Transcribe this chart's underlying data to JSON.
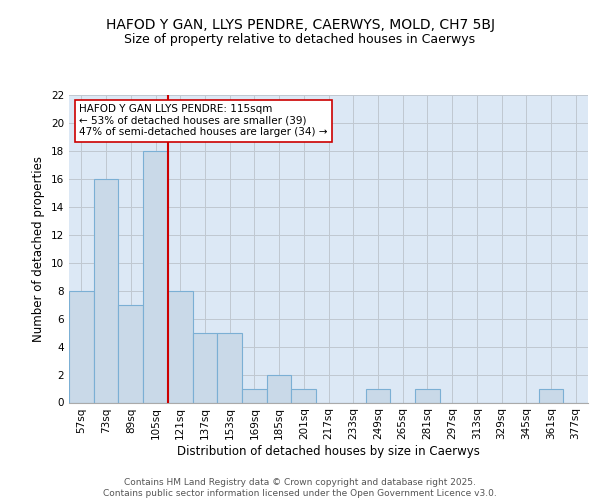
{
  "title1": "HAFOD Y GAN, LLYS PENDRE, CAERWYS, MOLD, CH7 5BJ",
  "title2": "Size of property relative to detached houses in Caerwys",
  "xlabel": "Distribution of detached houses by size in Caerwys",
  "ylabel": "Number of detached properties",
  "bar_labels": [
    "57sq",
    "73sq",
    "89sq",
    "105sq",
    "121sq",
    "137sq",
    "153sq",
    "169sq",
    "185sq",
    "201sq",
    "217sq",
    "233sq",
    "249sq",
    "265sq",
    "281sq",
    "297sq",
    "313sq",
    "329sq",
    "345sq",
    "361sq",
    "377sq"
  ],
  "bar_values": [
    8,
    16,
    7,
    18,
    8,
    5,
    5,
    1,
    2,
    1,
    0,
    0,
    1,
    0,
    1,
    0,
    0,
    0,
    0,
    1,
    0
  ],
  "bar_color": "#c9d9e8",
  "bar_edge_color": "#7bafd4",
  "grid_color": "#c0c8d0",
  "background_color": "#dce8f5",
  "red_line_x": 3.5,
  "annotation_text": "HAFOD Y GAN LLYS PENDRE: 115sqm\n← 53% of detached houses are smaller (39)\n47% of semi-detached houses are larger (34) →",
  "annotation_box_color": "#ffffff",
  "annotation_box_edge": "#cc0000",
  "red_line_color": "#cc0000",
  "ylim": [
    0,
    22
  ],
  "yticks": [
    0,
    2,
    4,
    6,
    8,
    10,
    12,
    14,
    16,
    18,
    20,
    22
  ],
  "footer": "Contains HM Land Registry data © Crown copyright and database right 2025.\nContains public sector information licensed under the Open Government Licence v3.0.",
  "title_fontsize": 10,
  "subtitle_fontsize": 9,
  "axis_label_fontsize": 8.5,
  "tick_fontsize": 7.5,
  "annotation_fontsize": 7.5,
  "footer_fontsize": 6.5
}
